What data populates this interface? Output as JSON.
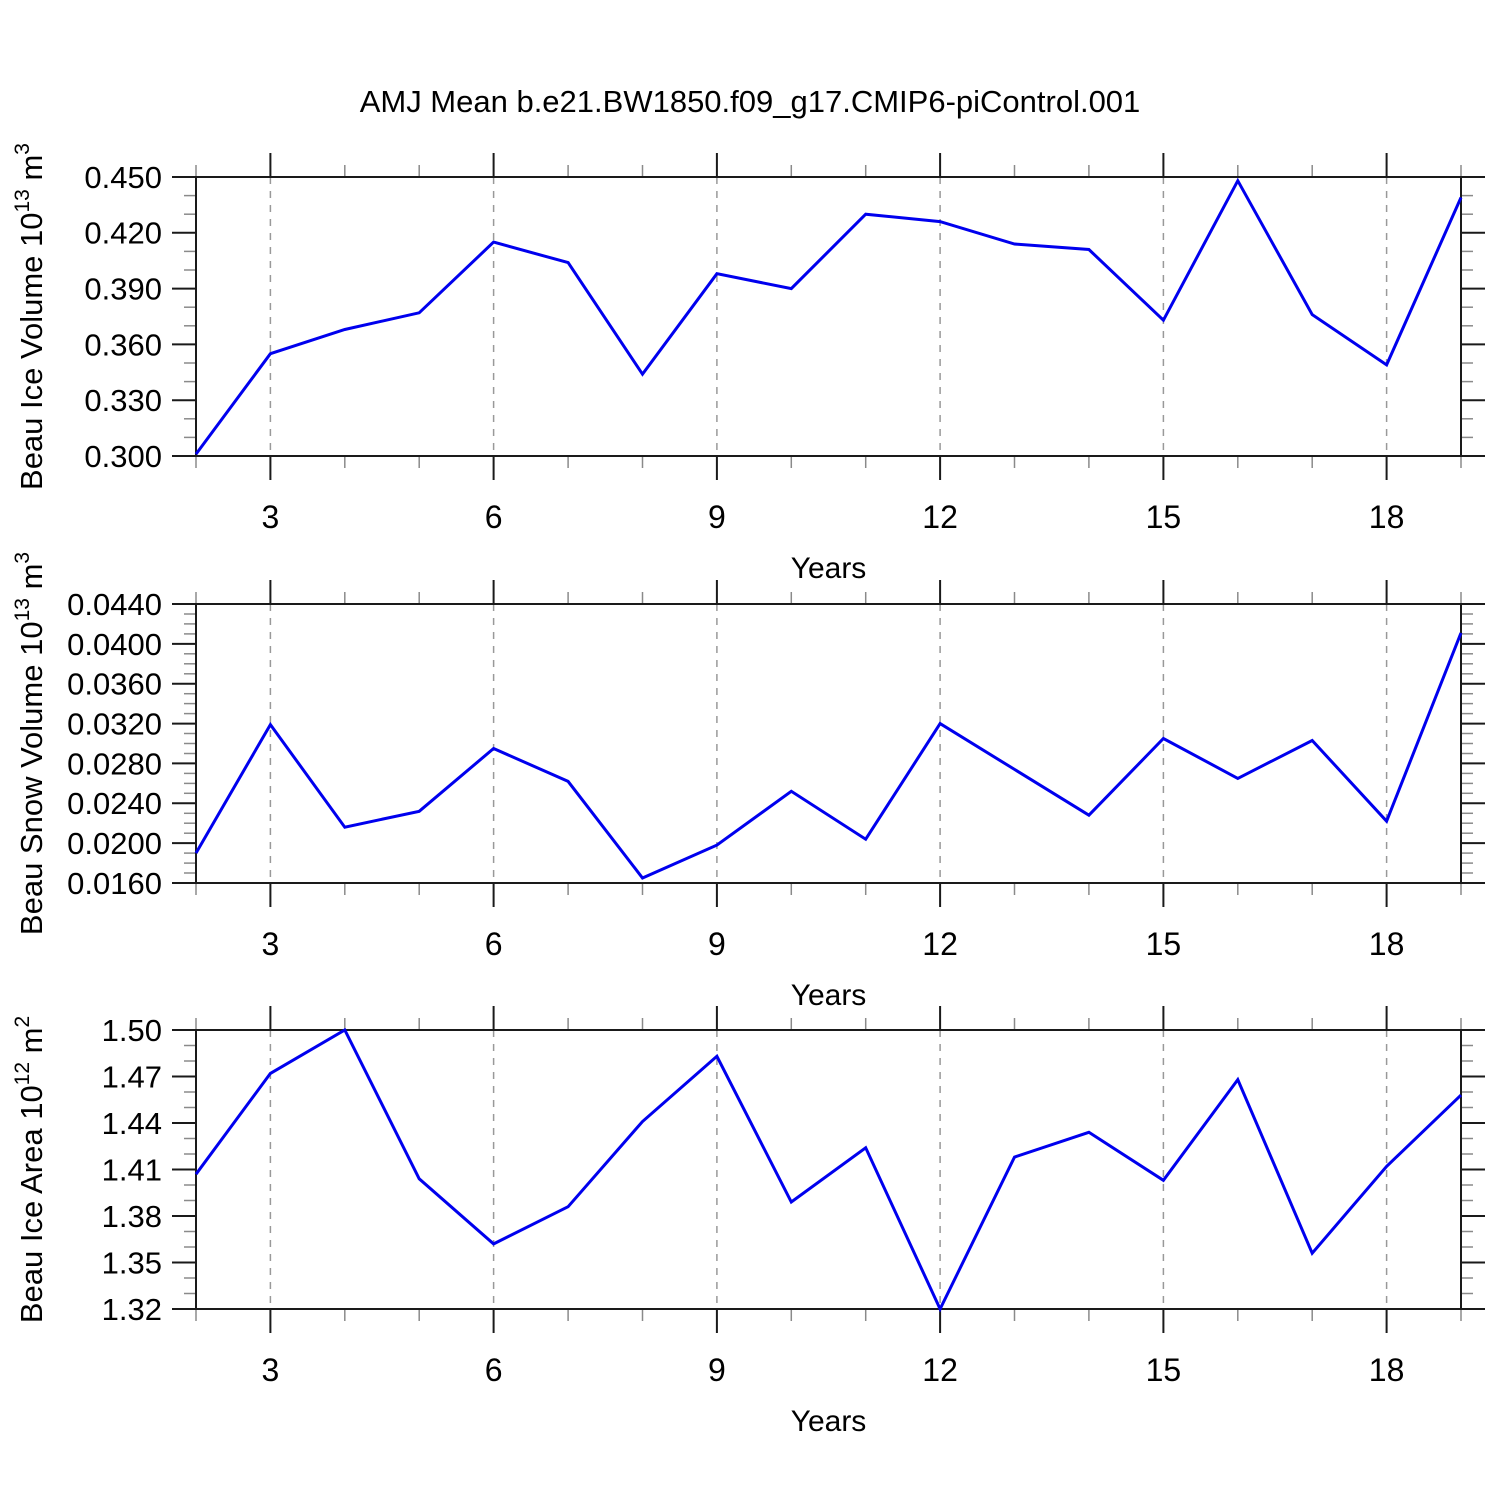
{
  "figure": {
    "title": "AMJ Mean b.e21.BW1850.f09_g17.CMIP6-piControl.001",
    "background_color": "#ffffff",
    "line_color": "#0000ee",
    "frame_color": "#1a1a1a",
    "grid_color": "#999999",
    "major_tick_color": "#1a1a1a",
    "minor_tick_color": "#8a8a8a",
    "text_color": "#000000"
  },
  "chart_data": [
    {
      "type": "line",
      "name": "beau-ice-volume",
      "xlabel": "Years",
      "ylabel_parts": [
        {
          "t": "Beau Ice Volume 10"
        },
        {
          "t": "13",
          "sup": true
        },
        {
          "t": " m"
        },
        {
          "t": "3",
          "sup": true
        }
      ],
      "x": [
        2,
        3,
        4,
        5,
        6,
        7,
        8,
        9,
        10,
        11,
        12,
        13,
        14,
        15,
        16,
        17,
        18,
        19
      ],
      "values": [
        0.301,
        0.355,
        0.368,
        0.377,
        0.415,
        0.404,
        0.344,
        0.398,
        0.39,
        0.43,
        0.426,
        0.414,
        0.411,
        0.373,
        0.448,
        0.376,
        0.349,
        0.439
      ],
      "xlim": [
        2,
        19
      ],
      "ylim": [
        0.3,
        0.45
      ],
      "xtick_values": [
        3,
        6,
        9,
        12,
        15,
        18
      ],
      "xtick_labels": [
        "3",
        "6",
        "9",
        "12",
        "15",
        "18"
      ],
      "x_minor_step": 1,
      "ytick_values": [
        0.3,
        0.33,
        0.36,
        0.39,
        0.42,
        0.45
      ],
      "ytick_labels": [
        "0.300",
        "0.330",
        "0.360",
        "0.390",
        "0.420",
        "0.450"
      ],
      "y_minor_step": 0.01,
      "grid": "vertical-dashed"
    },
    {
      "type": "line",
      "name": "beau-snow-volume",
      "xlabel": "Years",
      "ylabel_parts": [
        {
          "t": "Beau Snow Volume 10"
        },
        {
          "t": "13",
          "sup": true
        },
        {
          "t": " m"
        },
        {
          "t": "3",
          "sup": true
        }
      ],
      "x": [
        2,
        3,
        4,
        5,
        6,
        7,
        8,
        9,
        10,
        11,
        12,
        13,
        14,
        15,
        16,
        17,
        18,
        19
      ],
      "values": [
        0.019,
        0.0319,
        0.0216,
        0.0232,
        0.0295,
        0.0262,
        0.0165,
        0.0198,
        0.0252,
        0.0204,
        0.032,
        0.0274,
        0.0228,
        0.0305,
        0.0265,
        0.0303,
        0.0222,
        0.0411
      ],
      "xlim": [
        2,
        19
      ],
      "ylim": [
        0.016,
        0.044
      ],
      "xtick_values": [
        3,
        6,
        9,
        12,
        15,
        18
      ],
      "xtick_labels": [
        "3",
        "6",
        "9",
        "12",
        "15",
        "18"
      ],
      "x_minor_step": 1,
      "ytick_values": [
        0.016,
        0.02,
        0.024,
        0.028,
        0.032,
        0.036,
        0.04,
        0.044
      ],
      "ytick_labels": [
        "0.0160",
        "0.0200",
        "0.0240",
        "0.0280",
        "0.0320",
        "0.0360",
        "0.0400",
        "0.0440"
      ],
      "y_minor_step": 0.001,
      "grid": "vertical-dashed"
    },
    {
      "type": "line",
      "name": "beau-ice-area",
      "xlabel": "Years",
      "ylabel_parts": [
        {
          "t": "Beau Ice Area 10"
        },
        {
          "t": "12",
          "sup": true
        },
        {
          "t": " m"
        },
        {
          "t": "2",
          "sup": true
        }
      ],
      "x": [
        2,
        3,
        4,
        5,
        6,
        7,
        8,
        9,
        10,
        11,
        12,
        13,
        14,
        15,
        16,
        17,
        18,
        19
      ],
      "values": [
        1.407,
        1.472,
        1.5,
        1.404,
        1.362,
        1.386,
        1.441,
        1.483,
        1.389,
        1.424,
        1.32,
        1.418,
        1.434,
        1.403,
        1.468,
        1.356,
        1.412,
        1.458
      ],
      "xlim": [
        2,
        19
      ],
      "ylim": [
        1.32,
        1.5
      ],
      "xtick_values": [
        3,
        6,
        9,
        12,
        15,
        18
      ],
      "xtick_labels": [
        "3",
        "6",
        "9",
        "12",
        "15",
        "18"
      ],
      "x_minor_step": 1,
      "ytick_values": [
        1.32,
        1.35,
        1.38,
        1.41,
        1.44,
        1.47,
        1.5
      ],
      "ytick_labels": [
        "1.32",
        "1.35",
        "1.38",
        "1.41",
        "1.44",
        "1.47",
        "1.50"
      ],
      "y_minor_step": 0.01,
      "grid": "vertical-dashed"
    }
  ]
}
